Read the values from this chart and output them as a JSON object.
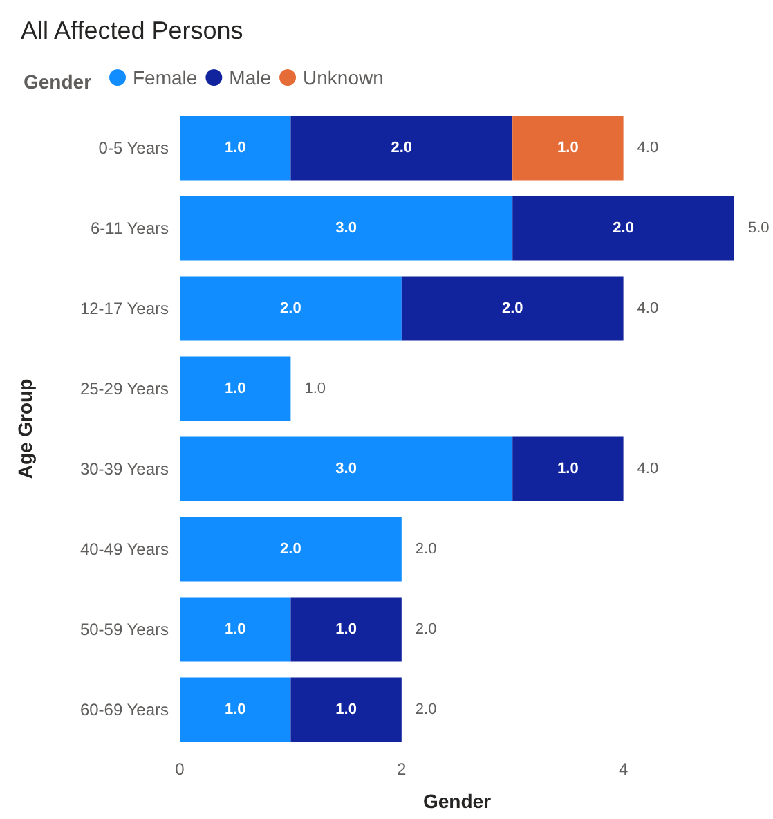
{
  "chart_data": {
    "type": "bar",
    "orientation": "horizontal",
    "stacked": true,
    "title": "All Affected Persons",
    "legend_title": "Gender",
    "legend": "top left",
    "xlabel": "Gender",
    "ylabel": "Age Group",
    "categories": [
      "0-5 Years",
      "6-11 Years",
      "12-17 Years",
      "25-29 Years",
      "30-39 Years",
      "40-49 Years",
      "50-59 Years",
      "60-69 Years"
    ],
    "series": [
      {
        "name": "Female",
        "color": "#118dff",
        "values": [
          1,
          3,
          2,
          1,
          3,
          2,
          1,
          1
        ],
        "value_labels": [
          "1.0",
          "3.0",
          "2.0",
          "1.0",
          "3.0",
          "2.0",
          "1.0",
          "1.0"
        ]
      },
      {
        "name": "Male",
        "color": "#12239e",
        "values": [
          2,
          2,
          2,
          null,
          1,
          null,
          1,
          1
        ],
        "value_labels": [
          "2.0",
          "2.0",
          "2.0",
          null,
          "1.0",
          null,
          "1.0",
          "1.0"
        ]
      },
      {
        "name": "Unknown",
        "color": "#e66c37",
        "values": [
          1,
          null,
          null,
          null,
          null,
          null,
          null,
          null
        ],
        "value_labels": [
          "1.0",
          null,
          null,
          null,
          null,
          null,
          null,
          null
        ]
      }
    ],
    "totals": [
      "4.0",
      "5.0",
      "4.0",
      "1.0",
      "4.0",
      "2.0",
      "2.0",
      "2.0"
    ],
    "xlim": [
      0,
      5
    ],
    "xticks": [
      0,
      2,
      4
    ],
    "grid": false
  }
}
